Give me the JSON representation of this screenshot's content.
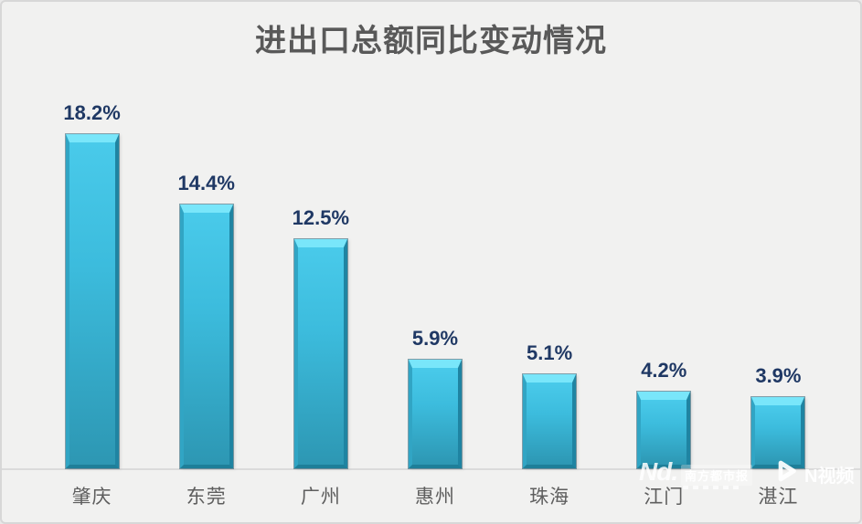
{
  "title": "进出口总额同比变动情况",
  "chart_data": {
    "type": "bar",
    "title": "进出口总额同比变动情况",
    "categories": [
      "肇庆",
      "东莞",
      "广州",
      "惠州",
      "珠海",
      "江门",
      "湛江"
    ],
    "values": [
      18.2,
      14.4,
      12.5,
      5.9,
      5.1,
      4.2,
      3.9
    ],
    "value_labels": [
      "18.2%",
      "14.4%",
      "12.5%",
      "5.9%",
      "5.1%",
      "4.2%",
      "3.9%"
    ],
    "xlabel": "",
    "ylabel": "",
    "ylim": [
      0,
      21.3
    ],
    "grid": false,
    "legend": false,
    "y_axis_visible": false,
    "bar_color_top": "#79e6fa",
    "bar_color_body": "#3cbcdd",
    "bar_color_bottom": "#2d97b3",
    "bar_edge_color": "#1e7f99",
    "value_label_color": "#1f3864",
    "category_label_color": "#5e5e5e",
    "title_color": "#595959",
    "background_color": "#f1f1f0",
    "axis_line_color": "#dbdbdb"
  },
  "watermark": {
    "logo_text": "Nd.",
    "brand_box": "南方都市报",
    "video_label": "N视频",
    "play_icon": "play-icon",
    "color": "#ffffff"
  }
}
